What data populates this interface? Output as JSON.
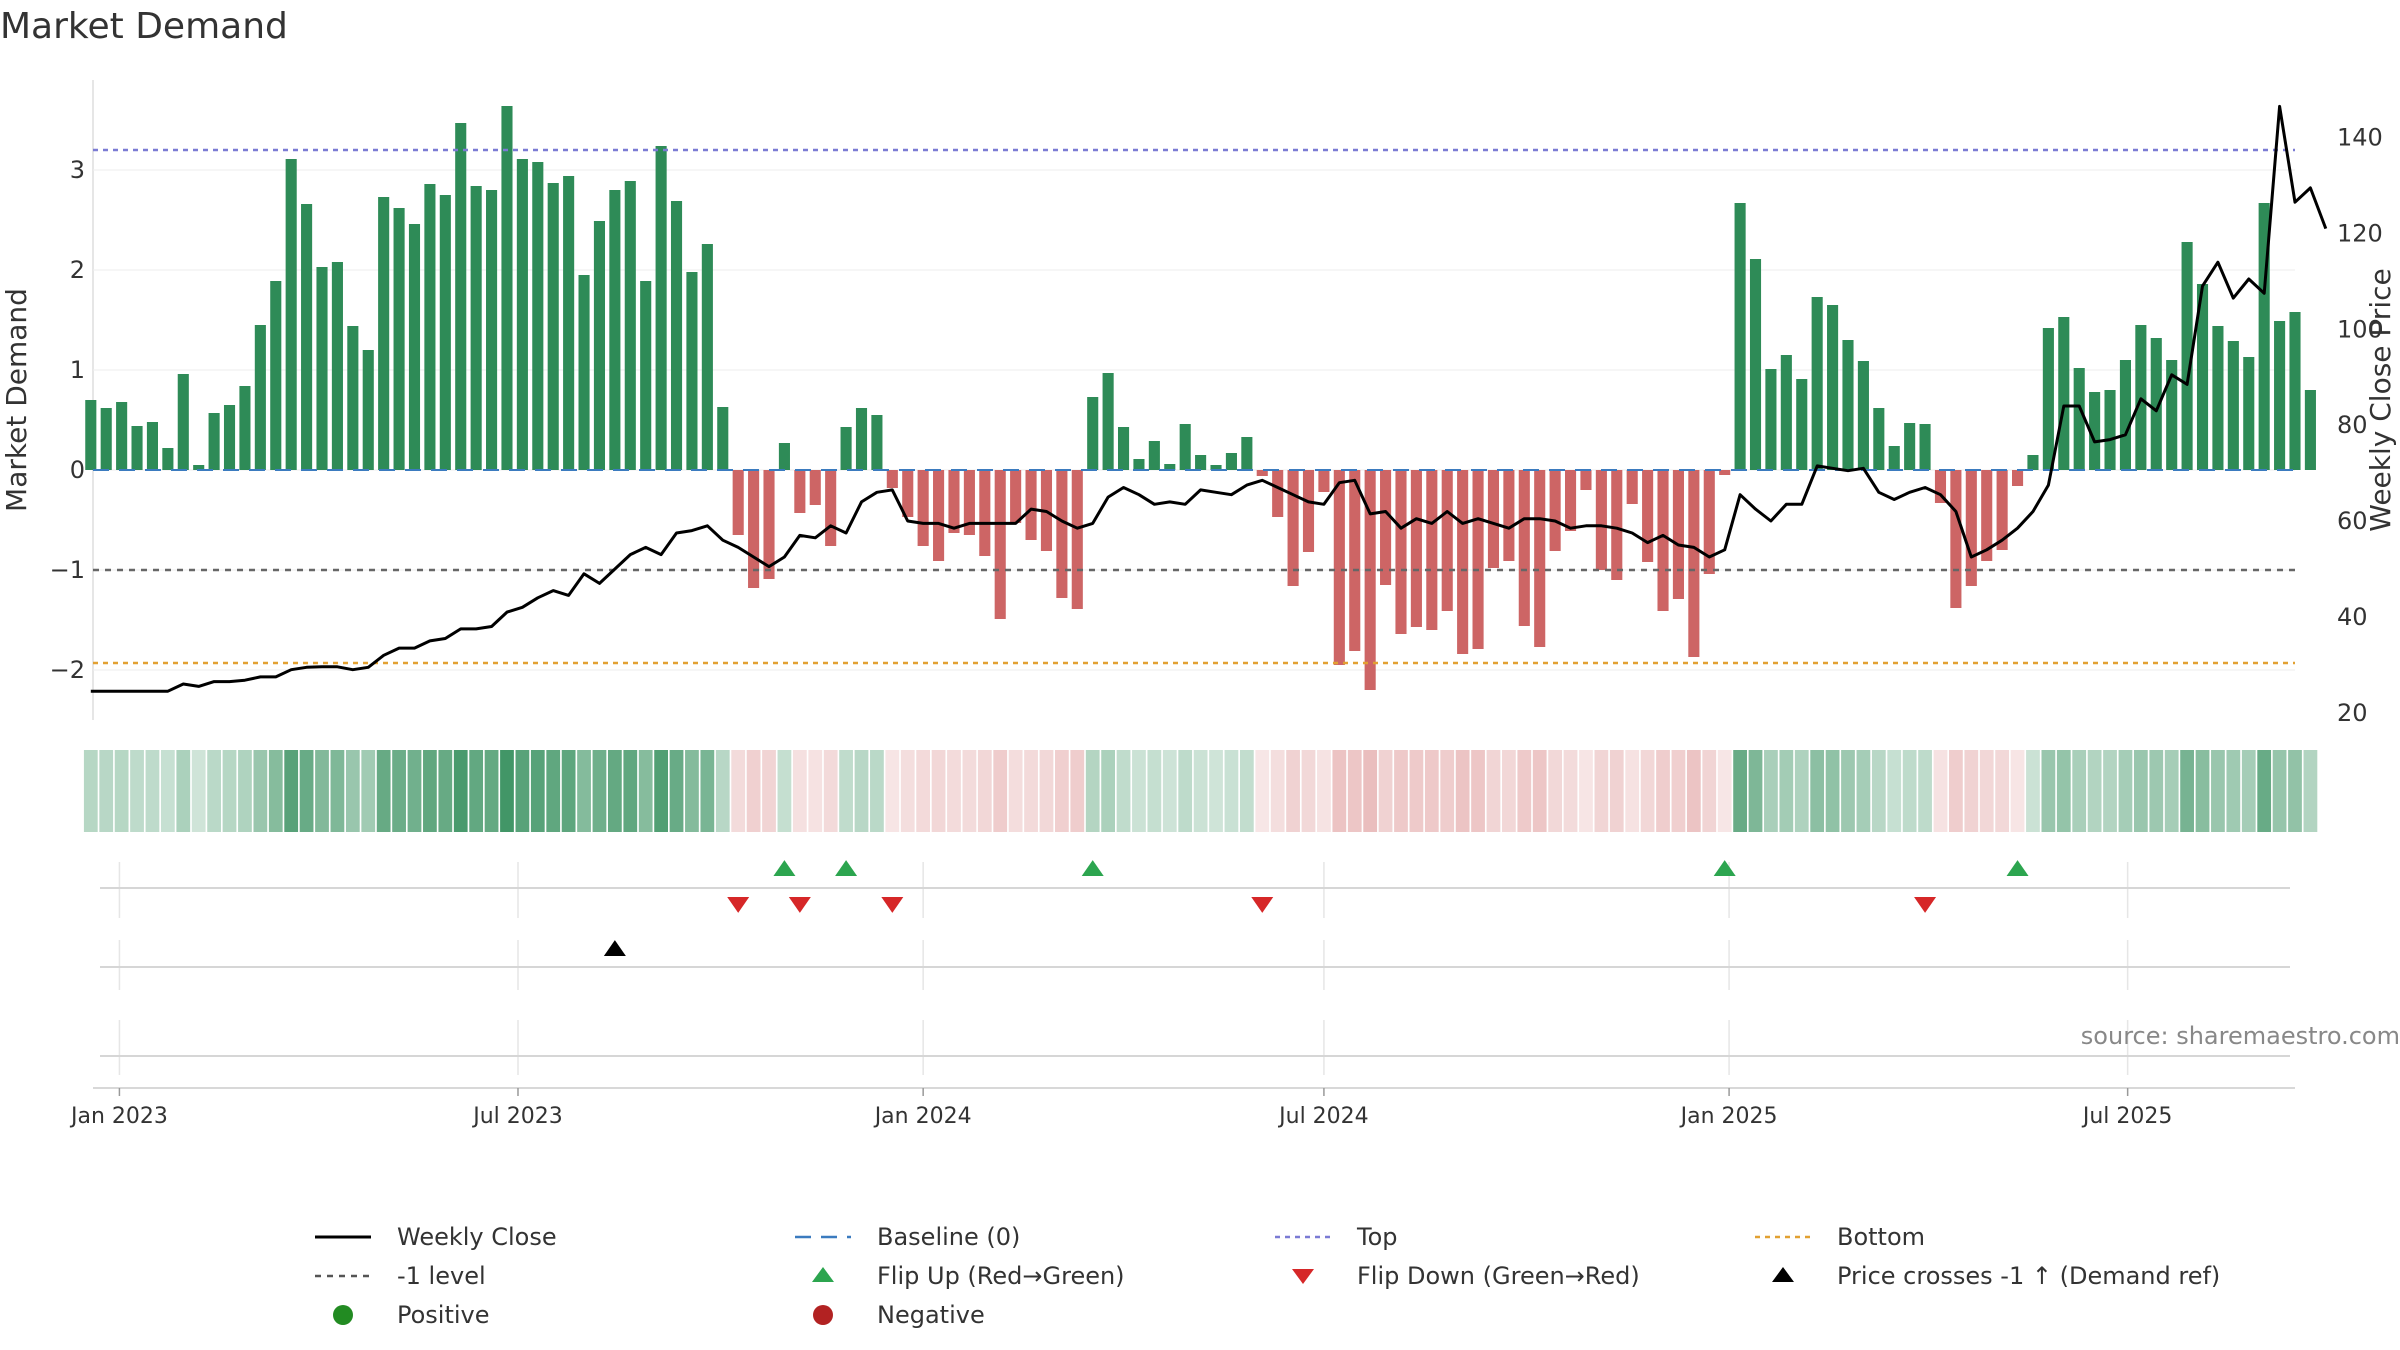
{
  "title": "Market Demand",
  "source": "source: sharemaestro.com",
  "chart_data": {
    "type": "bar",
    "left_axis": {
      "label": "Market Demand",
      "ticks": [
        -2,
        -1,
        0,
        1,
        2,
        3
      ],
      "range": [
        -2.5,
        3.9
      ]
    },
    "right_axis": {
      "label": "Weekly Close Price",
      "ticks": [
        20,
        40,
        60,
        80,
        100,
        120,
        140
      ],
      "range": [
        18.5,
        152
      ]
    },
    "x_range": [
      "2022-12-20",
      "2025-09-15"
    ],
    "x_ticks": [
      {
        "label": "Jan 2023",
        "date": "2023-01-01"
      },
      {
        "label": "Jul 2023",
        "date": "2023-07-01"
      },
      {
        "label": "Jan 2024",
        "date": "2024-01-01"
      },
      {
        "label": "Jul 2024",
        "date": "2024-07-01"
      },
      {
        "label": "Jan 2025",
        "date": "2025-01-01"
      },
      {
        "label": "Jul 2025",
        "date": "2025-07-01"
      }
    ],
    "start_week": "2022-12-19",
    "demand": [
      0.7,
      0.62,
      0.68,
      0.44,
      0.48,
      0.22,
      0.96,
      0.05,
      0.57,
      0.65,
      0.84,
      1.45,
      1.89,
      3.11,
      2.66,
      2.03,
      2.08,
      1.44,
      1.2,
      2.73,
      2.62,
      2.46,
      2.86,
      2.75,
      3.47,
      2.84,
      2.8,
      3.64,
      3.11,
      3.08,
      2.87,
      2.94,
      1.95,
      2.49,
      2.8,
      2.89,
      1.89,
      3.24,
      2.69,
      1.98,
      2.26,
      0.63,
      -0.65,
      -1.18,
      -1.09,
      0.27,
      -0.43,
      -0.35,
      -0.76,
      0.43,
      0.62,
      0.55,
      -0.18,
      -0.47,
      -0.76,
      -0.91,
      -0.63,
      -0.65,
      -0.86,
      -1.49,
      -0.53,
      -0.7,
      -0.81,
      -1.28,
      -1.39,
      0.73,
      0.97,
      0.43,
      0.11,
      0.29,
      0.06,
      0.46,
      0.15,
      0.05,
      0.17,
      0.33,
      -0.06,
      -0.47,
      -1.16,
      -0.82,
      -0.22,
      -1.95,
      -1.81,
      -2.2,
      -1.15,
      -1.64,
      -1.57,
      -1.6,
      -1.41,
      -1.84,
      -1.79,
      -0.98,
      -0.91,
      -1.56,
      -1.77,
      -0.81,
      -0.61,
      -0.2,
      -1.0,
      -1.1,
      -0.34,
      -0.92,
      -1.41,
      -1.29,
      -1.87,
      -1.04,
      -0.05,
      2.67,
      2.11,
      1.01,
      1.15,
      0.91,
      1.73,
      1.65,
      1.3,
      1.09,
      0.62,
      0.24,
      0.47,
      0.46,
      -0.33,
      -1.38,
      -1.16,
      -0.91,
      -0.8,
      -0.16,
      0.15,
      1.42,
      1.53,
      1.02,
      0.78,
      0.8,
      1.1,
      1.45,
      1.32,
      1.1,
      2.28,
      1.86,
      1.44,
      1.29,
      1.13,
      2.67,
      1.49,
      1.58,
      0.8
    ],
    "price": [
      24.5,
      24.5,
      24.5,
      24.5,
      24.5,
      24.5,
      26,
      25.5,
      26.5,
      26.5,
      26.8,
      27.5,
      27.5,
      29,
      29.5,
      29.6,
      29.6,
      29,
      29.5,
      32,
      33.5,
      33.5,
      35,
      35.5,
      37.5,
      37.5,
      38,
      41,
      42,
      44,
      45.5,
      44.5,
      49,
      47,
      50,
      53,
      54.5,
      53,
      57.5,
      58,
      59,
      56,
      54.5,
      52.5,
      50.5,
      52.5,
      57,
      56.5,
      59,
      57.5,
      64,
      66,
      66.5,
      60,
      59.5,
      59.5,
      58.5,
      59.5,
      59.5,
      59.5,
      59.5,
      62.5,
      62,
      60,
      58.5,
      59.5,
      65,
      67,
      65.5,
      63.5,
      64,
      63.5,
      66.5,
      66,
      65.5,
      67.5,
      68.5,
      67,
      65.5,
      64,
      63.5,
      68,
      68.5,
      61.5,
      62,
      58.5,
      60.5,
      59.5,
      62,
      59.5,
      60.5,
      59.5,
      58.5,
      60.5,
      60.5,
      60,
      58.5,
      59,
      59,
      58.5,
      57.5,
      55.5,
      57,
      55,
      54.5,
      52.5,
      54,
      65.5,
      62.5,
      60,
      63.5,
      63.5,
      71.5,
      71,
      70.5,
      71,
      66,
      64.5,
      66,
      67,
      65.5,
      62,
      52.5,
      54,
      56,
      58.5,
      62,
      67.5,
      84,
      84,
      76.5,
      77,
      78,
      85.5,
      83,
      90.5,
      88.5,
      109,
      114,
      106.5,
      110.5,
      107.5,
      146.5,
      126.5,
      129.5,
      121
    ],
    "reference_lines": [
      {
        "name": "Top",
        "value": 3.2,
        "color": "#7b7bd4",
        "style": "dotted"
      },
      {
        "name": "-1 level",
        "value": -1,
        "color": "#666666",
        "style": "dashed"
      },
      {
        "name": "Bottom",
        "value": -1.93,
        "color": "#e2a132",
        "style": "dotted"
      },
      {
        "name": "Baseline (0)",
        "value": 0,
        "color": "#3b7bbf",
        "style": "dashed"
      }
    ],
    "flip_up_weeks": [
      45,
      49,
      65,
      106,
      125
    ],
    "flip_down_weeks": [
      42,
      46,
      52,
      76,
      119
    ],
    "price_cross_weeks": [
      34
    ],
    "colors": {
      "positive_bar": "#2e8b57",
      "negative_bar": "#cd6565",
      "price_line": "#000000",
      "flip_up": "#2ca54f",
      "flip_down": "#d62728",
      "cross": "#000000",
      "positive_dot": "#228b22",
      "negative_dot": "#b22222"
    },
    "legend": {
      "position": "bottom",
      "entries": [
        {
          "label": "Weekly Close",
          "kind": "line-solid",
          "color": "#000000"
        },
        {
          "label": "Baseline (0)",
          "kind": "line-dash",
          "color": "#3b7bbf"
        },
        {
          "label": "Top",
          "kind": "line-dot",
          "color": "#7b7bd4"
        },
        {
          "label": "Bottom",
          "kind": "line-dot",
          "color": "#e2a132"
        },
        {
          "label": "-1 level",
          "kind": "line-dash",
          "color": "#555555"
        },
        {
          "label": "Flip Up (Red→Green)",
          "kind": "tri-up",
          "color": "#2ca54f"
        },
        {
          "label": "Flip Down (Green→Red)",
          "kind": "tri-down",
          "color": "#d62728"
        },
        {
          "label": "Price crosses -1 ↑ (Demand ref)",
          "kind": "tri-up",
          "color": "#000000"
        },
        {
          "label": "Positive",
          "kind": "dot",
          "color": "#228b22"
        },
        {
          "label": "Negative",
          "kind": "dot",
          "color": "#b22222"
        }
      ]
    }
  }
}
